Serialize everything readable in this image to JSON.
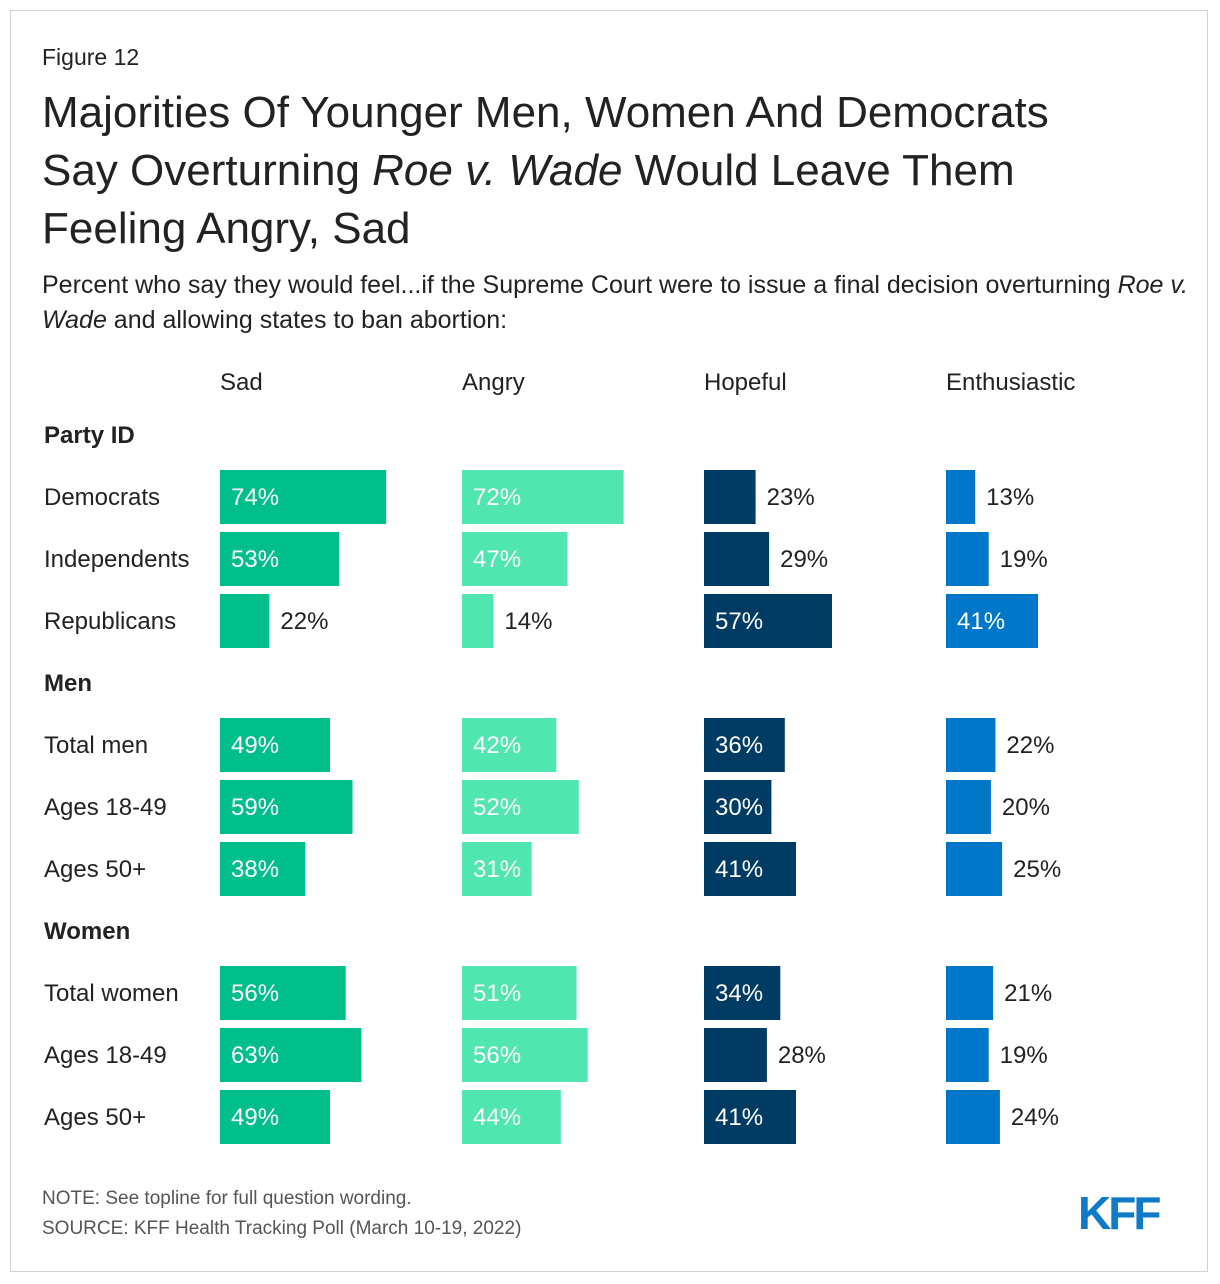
{
  "figure_label": "Figure 12",
  "title_parts": {
    "line1": "Majorities Of Younger Men, Women And Democrats",
    "line2_pre": "Say Overturning ",
    "line2_italic": "Roe v. Wade",
    "line2_post": " Would Leave Them",
    "line3": "Feeling Angry, Sad"
  },
  "subtitle_parts": {
    "pre": "Percent who say they would feel...if the Supreme Court were to issue a final decision overturning ",
    "italic": "Roe v. Wade",
    "post": " and allowing states to ban abortion:"
  },
  "groups": [
    "Party ID",
    "Men",
    "Women"
  ],
  "note": "NOTE: See topline for full question wording.",
  "source": "SOURCE: KFF Health Tracking Poll (March 10-19, 2022)",
  "logo": "KFF",
  "colors": {
    "sad": "#00bf8a",
    "angry": "#4fe6af",
    "hopeful": "#003b63",
    "enthusiastic": "#0077c8",
    "label_inside": "#ffffff",
    "label_outside": "#222222"
  },
  "chart_data": {
    "type": "bar",
    "orientation": "horizontal",
    "unit": "%",
    "categories": [
      "Democrats",
      "Independents",
      "Republicans",
      "Total men",
      "Ages 18-49",
      "Ages 50+",
      "Total women",
      "Ages 18-49",
      "Ages 50+"
    ],
    "category_groups": [
      "Party ID",
      "Party ID",
      "Party ID",
      "Men",
      "Men",
      "Men",
      "Women",
      "Women",
      "Women"
    ],
    "series": [
      {
        "name": "Sad",
        "values": [
          74,
          53,
          22,
          49,
          59,
          38,
          56,
          63,
          49
        ]
      },
      {
        "name": "Angry",
        "values": [
          72,
          47,
          14,
          42,
          52,
          31,
          51,
          56,
          44
        ]
      },
      {
        "name": "Hopeful",
        "values": [
          23,
          29,
          57,
          36,
          30,
          41,
          34,
          28,
          41
        ]
      },
      {
        "name": "Enthusiastic",
        "values": [
          13,
          19,
          41,
          22,
          20,
          25,
          21,
          19,
          24
        ]
      }
    ],
    "title": "Majorities Of Younger Men, Women And Democrats Say Overturning Roe v. Wade Would Leave Them Feeling Angry, Sad",
    "xlim": [
      0,
      100
    ],
    "grid": false,
    "legend": "none"
  }
}
